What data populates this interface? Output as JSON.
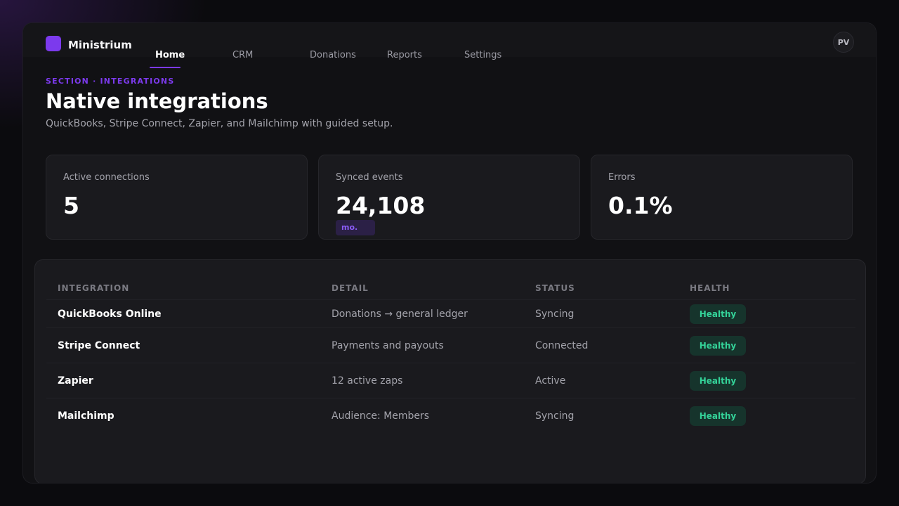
{
  "app": {
    "name": "Ministrium",
    "user_initials": "PV",
    "accent": "#7c3aed"
  },
  "nav": {
    "items": [
      {
        "label": "Home",
        "active": true
      },
      {
        "label": "CRM",
        "active": false
      },
      {
        "label": "Donations",
        "active": false
      },
      {
        "label": "Reports",
        "active": false
      },
      {
        "label": "Settings",
        "active": false
      }
    ]
  },
  "header": {
    "section_label": "SECTION · INTEGRATIONS",
    "title": "Native integrations",
    "subtitle": "QuickBooks, Stripe Connect, Zapier, and Mailchimp with guided setup."
  },
  "stats": [
    {
      "label": "Active connections",
      "value": "5"
    },
    {
      "label": "Synced events",
      "value": "24,108",
      "badge": "mo."
    },
    {
      "label": "Errors",
      "value": "0.1%"
    }
  ],
  "table": {
    "columns": [
      "INTEGRATION",
      "DETAIL",
      "STATUS",
      "HEALTH"
    ],
    "rows": [
      {
        "integration": "QuickBooks Online",
        "detail": "Donations → general ledger",
        "status": "Syncing",
        "health": "Healthy"
      },
      {
        "integration": "Stripe Connect",
        "detail": "Payments and payouts",
        "status": "Connected",
        "health": "Healthy"
      },
      {
        "integration": "Zapier",
        "detail": "12 active zaps",
        "status": "Active",
        "health": "Healthy"
      },
      {
        "integration": "Mailchimp",
        "detail": "Audience: Members",
        "status": "Syncing",
        "health": "Healthy"
      }
    ]
  },
  "colors": {
    "healthy_bg": "#16342c",
    "healthy_text": "#34d399"
  }
}
